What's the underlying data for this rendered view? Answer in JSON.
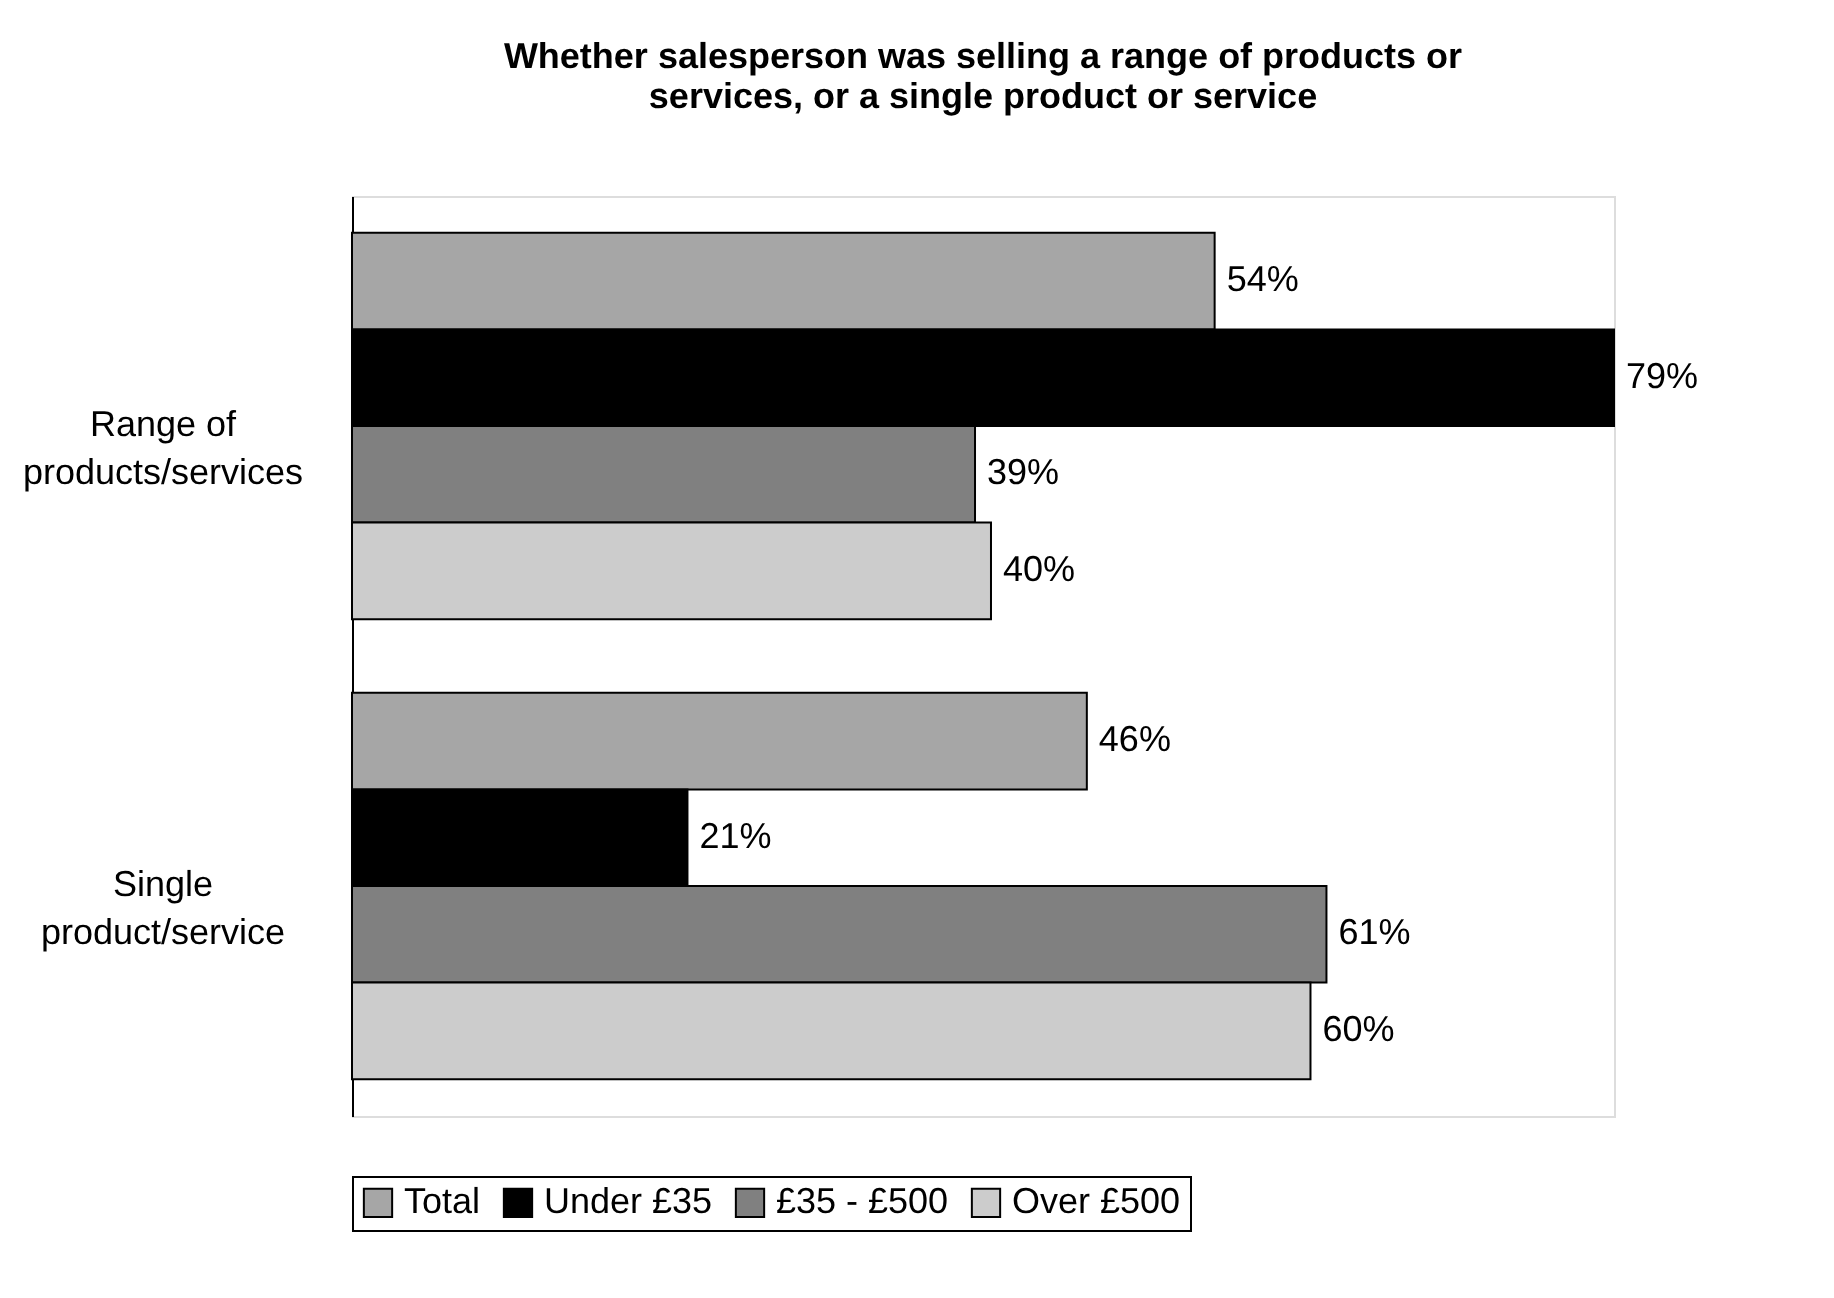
{
  "chart_data": {
    "type": "bar",
    "orientation": "horizontal",
    "title": "Whether salesperson was selling a range of products or\nservices, or a single product or service",
    "categories": [
      "Range of\nproducts/services",
      "Single\nproduct/service"
    ],
    "series": [
      {
        "name": "Total",
        "color": "#a6a6a6",
        "values": [
          54,
          46
        ],
        "value_labels": [
          "54%",
          "46%"
        ]
      },
      {
        "name": "Under £35",
        "color": "#000000",
        "values": [
          79,
          21
        ],
        "value_labels": [
          "79%",
          "21%"
        ]
      },
      {
        "name": "£35 - £500",
        "color": "#808080",
        "values": [
          39,
          61
        ],
        "value_labels": [
          "39%",
          "61%"
        ]
      },
      {
        "name": "Over £500",
        "color": "#cccccc",
        "values": [
          40,
          60
        ],
        "value_labels": [
          "40%",
          "60%"
        ]
      }
    ],
    "legend": "bottom",
    "grid": false
  }
}
